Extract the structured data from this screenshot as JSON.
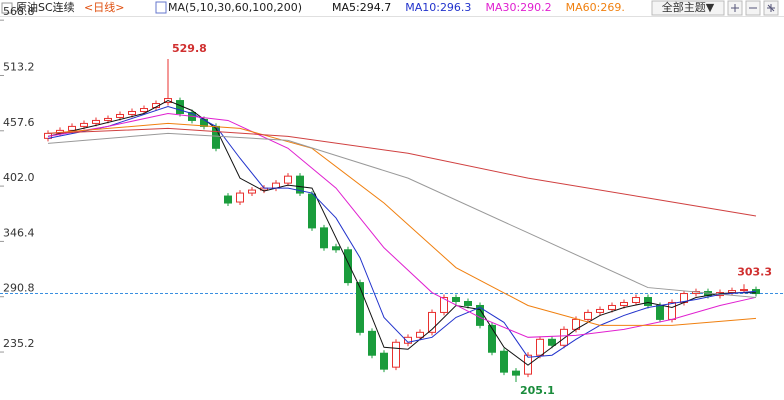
{
  "chart_data": {
    "type": "candlestick",
    "title": "原油SC连续",
    "period": "<日线>",
    "indicator": "MA(5,10,30,60,100,200)",
    "theme_button": "全部主题▼",
    "open": [
      450,
      455,
      458,
      462,
      465,
      468,
      471,
      474,
      477,
      481,
      486,
      488,
      476,
      469,
      462,
      392,
      386,
      395,
      398,
      400,
      405,
      412,
      394,
      360,
      341,
      338,
      305,
      256,
      234,
      220,
      244,
      250,
      255,
      275,
      290,
      286,
      282,
      262,
      236,
      216,
      213,
      232,
      248,
      242,
      258,
      268,
      275,
      278,
      282,
      285,
      290,
      282,
      268,
      285,
      294,
      296,
      292,
      295,
      297,
      298
    ],
    "high": [
      458,
      461,
      465,
      468,
      471,
      473,
      477,
      480,
      483,
      488,
      529.8,
      491,
      479,
      472,
      465,
      395,
      398,
      401,
      403,
      408,
      415,
      415,
      397,
      363,
      344,
      341,
      308,
      259,
      237,
      248,
      253,
      258,
      278,
      293,
      293,
      289,
      285,
      265,
      239,
      219,
      235,
      251,
      251,
      261,
      271,
      278,
      281,
      285,
      288,
      293,
      293,
      285,
      288,
      297,
      299,
      299,
      298,
      300,
      303.3,
      301
    ],
    "low": [
      447,
      452,
      455,
      459,
      462,
      465,
      468,
      471,
      474,
      478,
      483,
      472,
      465,
      459,
      437,
      382,
      383,
      392,
      395,
      397,
      402,
      392,
      357,
      337,
      335,
      302,
      252,
      229,
      215,
      217,
      241,
      247,
      252,
      272,
      283,
      279,
      259,
      232,
      212,
      205.1,
      210,
      229,
      239,
      239,
      255,
      265,
      272,
      275,
      279,
      282,
      279,
      265,
      265,
      282,
      291,
      289,
      289,
      292,
      294,
      291
    ],
    "close": [
      455,
      458,
      462,
      465,
      468,
      470,
      474,
      477,
      480,
      485,
      490,
      475,
      468,
      462,
      440,
      385,
      395,
      398,
      400,
      405,
      412,
      395,
      360,
      340,
      338,
      305,
      255,
      232,
      218,
      245,
      250,
      255,
      275,
      290,
      286,
      282,
      262,
      235,
      215,
      212,
      232,
      248,
      242,
      258,
      268,
      275,
      278,
      282,
      285,
      290,
      282,
      268,
      285,
      294,
      296,
      292,
      295,
      297,
      298,
      294
    ],
    "up_color": "#e8312f",
    "down_color": "#1a9c3c",
    "ma_series": [
      {
        "name": "MA5:294.7",
        "color": "#111111",
        "x": [
          0,
          4,
          8,
          10,
          12,
          14,
          16,
          18,
          20,
          22,
          24,
          26,
          28,
          30,
          32,
          34,
          36,
          38,
          40,
          42,
          44,
          46,
          48,
          50,
          52,
          54,
          56,
          58,
          59
        ],
        "values": [
          452,
          463,
          475,
          488,
          478,
          460,
          410,
          397,
          403,
          400,
          350,
          300,
          240,
          238,
          258,
          282,
          278,
          240,
          222,
          240,
          258,
          272,
          280,
          285,
          280,
          290,
          294,
          295,
          294.7
        ]
      },
      {
        "name": "MA10:296.3",
        "color": "#2233cc",
        "x": [
          0,
          5,
          10,
          12,
          14,
          16,
          18,
          20,
          22,
          24,
          26,
          28,
          30,
          32,
          34,
          36,
          38,
          40,
          42,
          44,
          46,
          48,
          50,
          52,
          54,
          56,
          59
        ],
        "values": [
          450,
          462,
          482,
          475,
          462,
          430,
          400,
          400,
          395,
          370,
          330,
          270,
          245,
          250,
          270,
          280,
          265,
          230,
          232,
          248,
          262,
          272,
          280,
          284,
          288,
          293,
          296.3
        ]
      },
      {
        "name": "MA30:290.2",
        "color": "#e020d0",
        "x": [
          0,
          5,
          10,
          15,
          20,
          24,
          28,
          32,
          36,
          40,
          44,
          48,
          52,
          56,
          59
        ],
        "values": [
          452,
          462,
          475,
          468,
          440,
          400,
          340,
          295,
          270,
          250,
          252,
          258,
          268,
          282,
          290.2
        ]
      },
      {
        "name": "MA60:269.",
        "color": "#f08010",
        "x": [
          0,
          10,
          16,
          22,
          28,
          34,
          40,
          46,
          52,
          59
        ],
        "values": [
          455,
          465,
          460,
          440,
          385,
          320,
          282,
          262,
          262,
          269
        ]
      },
      {
        "color": "#999999",
        "x": [
          0,
          10,
          20,
          30,
          40,
          50,
          59
        ],
        "values": [
          445,
          455,
          448,
          410,
          355,
          300,
          290
        ]
      },
      {
        "color": "#d04040",
        "x": [
          0,
          10,
          20,
          30,
          40,
          50,
          59
        ],
        "values": [
          455,
          460,
          452,
          435,
          410,
          390,
          372
        ]
      }
    ],
    "ylim": [
      190,
      575
    ],
    "yticks": [
      568.8,
      513.2,
      457.6,
      {
        "value": 402,
        "label": "402.0"
      },
      346.4,
      290.8,
      235.2
    ]
  }
}
